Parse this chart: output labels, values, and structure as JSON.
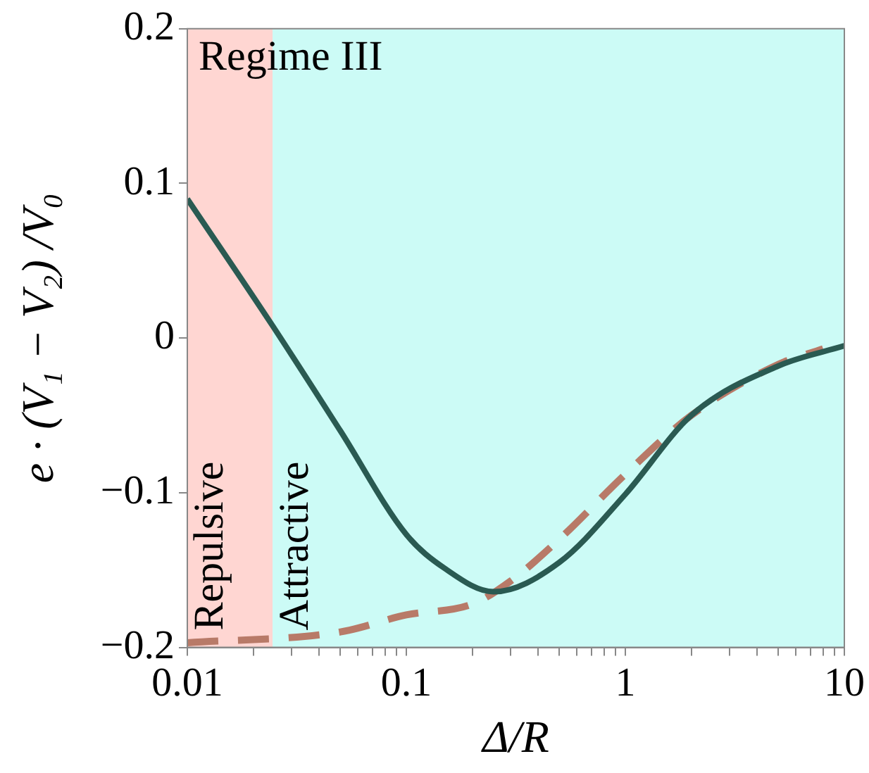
{
  "chart_data": {
    "type": "line",
    "xlabel": "Δ/R",
    "ylabel": "e · (V₁ − V₂) /V₀",
    "log": "x",
    "legend": false,
    "grid": false,
    "marker": "none",
    "xlim": [
      0.01,
      10
    ],
    "ylim": [
      -0.2,
      0.2
    ],
    "xticks": [
      0.01,
      {
        "value": 0.02,
        "label": null
      },
      {
        "value": 0.03,
        "label": null
      },
      {
        "value": 0.04,
        "label": null
      },
      {
        "value": 0.05,
        "label": null
      },
      {
        "value": 0.06,
        "label": null
      },
      {
        "value": 0.07,
        "label": null
      },
      {
        "value": 0.08,
        "label": null
      },
      {
        "value": 0.09,
        "label": null
      },
      0.1,
      {
        "value": 0.2,
        "label": null
      },
      {
        "value": 0.3,
        "label": null
      },
      {
        "value": 0.4,
        "label": null
      },
      {
        "value": 0.5,
        "label": null
      },
      {
        "value": 0.6,
        "label": null
      },
      {
        "value": 0.7,
        "label": null
      },
      {
        "value": 0.8,
        "label": null
      },
      {
        "value": 0.9,
        "label": null
      },
      1,
      {
        "value": 2,
        "label": null
      },
      {
        "value": 3,
        "label": null
      },
      {
        "value": 4,
        "label": null
      },
      {
        "value": 5,
        "label": null
      },
      {
        "value": 6,
        "label": null
      },
      {
        "value": 7,
        "label": null
      },
      {
        "value": 8,
        "label": null
      },
      {
        "value": 9,
        "label": null
      },
      10
    ],
    "yticks": [
      {
        "value": -0.2,
        "label": "−0.2"
      },
      {
        "value": -0.1,
        "label": "−0.1"
      },
      0,
      0.1,
      0.2
    ],
    "bands": [
      {
        "axis": "x",
        "from": 0.01,
        "to": 0.0245,
        "label": "Repulsive",
        "color": "#ffd6d2"
      },
      {
        "axis": "x",
        "from": 0.0245,
        "to": 10,
        "label": "Attractive",
        "color": "#ccfbf6"
      }
    ],
    "annotations": [
      "Regime III"
    ],
    "series": [
      {
        "color": "#2a5a52",
        "line_style": "solid",
        "x": [
          0.01,
          0.0245,
          0.05,
          0.1,
          0.15,
          0.25,
          0.5,
          1,
          2,
          5,
          10
        ],
        "values": [
          0.09,
          0.008,
          -0.06,
          -0.127,
          -0.149,
          -0.164,
          -0.145,
          -0.101,
          -0.05,
          -0.018,
          -0.005
        ]
      },
      {
        "color": "#b87a68",
        "line_style": "dashed",
        "x": [
          0.01,
          0.05,
          0.1,
          0.2,
          0.3,
          0.5,
          1,
          2,
          5,
          8
        ],
        "values": [
          -0.197,
          -0.19,
          -0.179,
          -0.172,
          -0.157,
          -0.13,
          -0.088,
          -0.05,
          -0.017,
          -0.007
        ]
      }
    ]
  }
}
